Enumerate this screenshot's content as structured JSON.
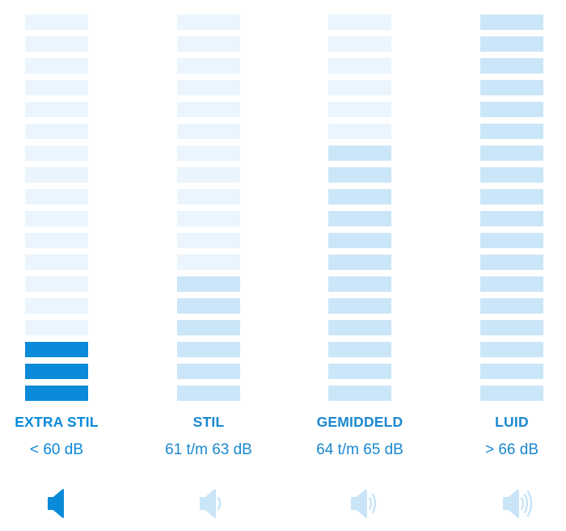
{
  "total_segments": 18,
  "colors": {
    "inactive": "#eaf5fd",
    "light_active": "#cbe6f8",
    "strong_active": "#0a8ad8",
    "strong_text": "#0a8ad8",
    "light_text": "#1a88d0",
    "light_icon": "#c9e5f7"
  },
  "levels": [
    {
      "label": "EXTRA STIL",
      "range": "< 60 dB",
      "filled_segments": 3,
      "fill_style": "strong",
      "speaker_icon": "speaker-muted-icon",
      "waves": 0
    },
    {
      "label": "STIL",
      "range": "61 t/m 63 dB",
      "filled_segments": 6,
      "fill_style": "light",
      "speaker_icon": "speaker-low-icon",
      "waves": 1
    },
    {
      "label": "GEMIDDELD",
      "range": "64 t/m 65 dB",
      "filled_segments": 12,
      "fill_style": "light",
      "speaker_icon": "speaker-medium-icon",
      "waves": 2
    },
    {
      "label": "LUID",
      "range": "> 66 dB",
      "filled_segments": 18,
      "fill_style": "light",
      "speaker_icon": "speaker-high-icon",
      "waves": 3
    }
  ]
}
